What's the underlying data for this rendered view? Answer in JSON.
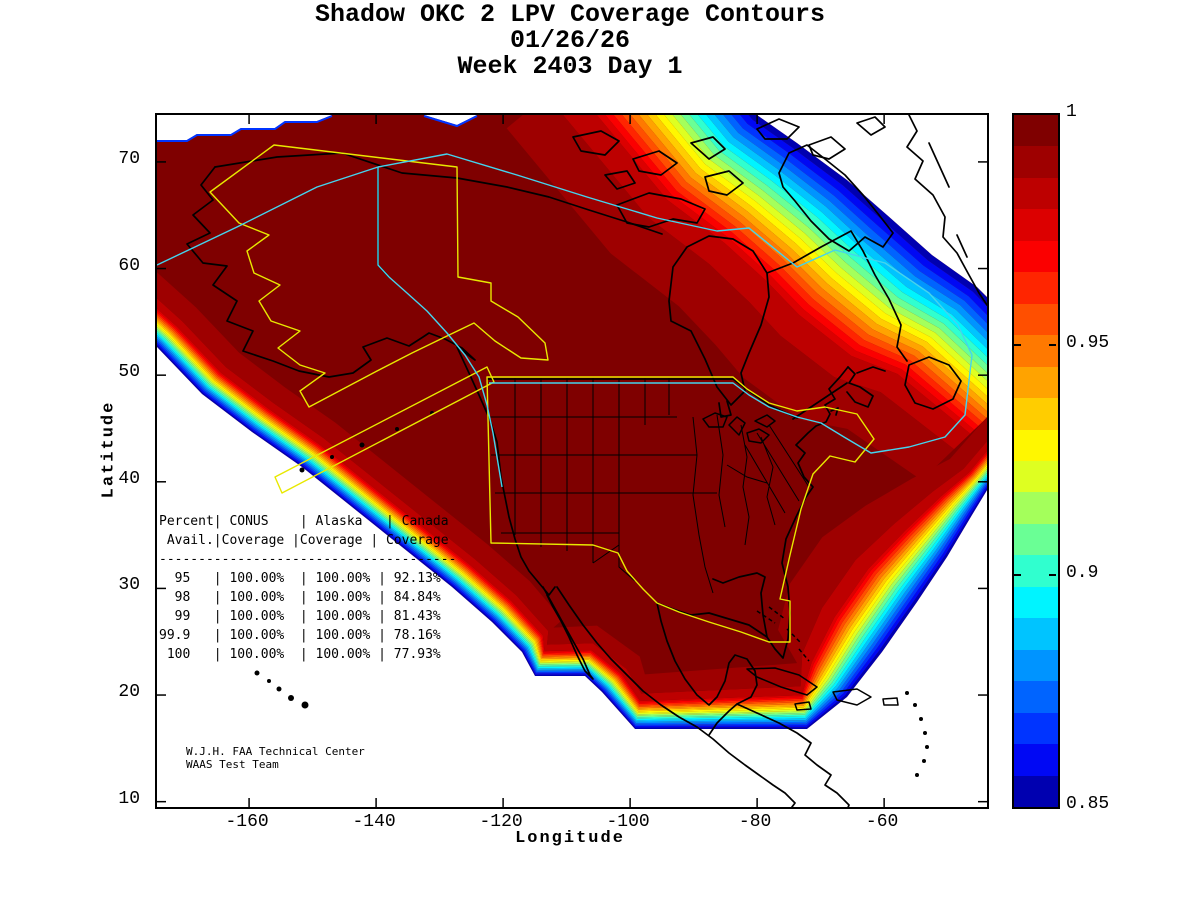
{
  "title": {
    "line1": "Shadow OKC 2 LPV Coverage Contours",
    "line2": "01/26/26",
    "line3": "Week 2403 Day 1"
  },
  "axes": {
    "xlabel": "Longitude",
    "ylabel": "Latitude",
    "x_ticks": [
      -160,
      -140,
      -120,
      -100,
      -80,
      -60
    ],
    "y_ticks": [
      10,
      20,
      30,
      40,
      50,
      60,
      70
    ],
    "xlim": [
      -174.5,
      -43.8
    ],
    "ylim": [
      9.5,
      74.4
    ]
  },
  "colorbar": {
    "tick_labels": [
      "1",
      "0.95",
      "0.9",
      "0.85"
    ],
    "tick_values": [
      1,
      0.95,
      0.9,
      0.85
    ],
    "min": 0.85,
    "max": 1
  },
  "coverage_table": {
    "lines": [
      "Percent| CONUS    | Alaska   | Canada",
      " Avail.|Coverage |Coverage | Coverage",
      "--------------------------------------",
      "  95   | 100.00%  | 100.00% | 92.13%",
      "  98   | 100.00%  | 100.00% | 84.84%",
      "  99   | 100.00%  | 100.00% | 81.43%",
      "99.9   | 100.00%  | 100.00% | 78.16%",
      " 100   | 100.00%  | 100.00% | 77.93%"
    ]
  },
  "credit": {
    "line1": "W.J.H. FAA Technical Center",
    "line2": "WAAS Test Team"
  },
  "colors": {
    "jet": [
      "#7f0000",
      "#9e0000",
      "#bd0000",
      "#dc0000",
      "#fb0000",
      "#ff2500",
      "#ff4f00",
      "#ff7900",
      "#ffa300",
      "#ffcd00",
      "#fff700",
      "#deff21",
      "#a4ff5b",
      "#6aff95",
      "#30ffcf",
      "#00f4ff",
      "#00c4ff",
      "#0094ff",
      "#0064ff",
      "#0034ff",
      "#0008f4",
      "#0000b0"
    ],
    "core": "#7f0000",
    "service_boundary_yellow": "#e8e800",
    "region_line_cyan": "#44d4ee",
    "coastline": "#000000"
  },
  "chart_data": {
    "type": "heatmap",
    "subtype": "filled_contour_coverage_map",
    "title": "Shadow OKC 2 LPV Coverage Contours",
    "date": "01/26/26",
    "gps_week_day": "Week 2403 Day 1",
    "xlabel": "Longitude",
    "ylabel": "Latitude",
    "xlim": [
      -174.5,
      -43.8
    ],
    "ylim": [
      9.5,
      74.4
    ],
    "x_ticks": [
      -160,
      -140,
      -120,
      -100,
      -80,
      -60
    ],
    "y_ticks": [
      10,
      20,
      30,
      40,
      50,
      60,
      70
    ],
    "colormap": "jet",
    "colorbar_range": [
      0.85,
      1
    ],
    "colorbar_ticks": [
      1,
      0.95,
      0.9,
      0.85
    ],
    "value_meaning": "LPV availability fraction; dark red core = 1.0 covering CONUS, Alaska and most of Canada; bands fall to 0.85 (dark blue) at coverage edge over NE Canada/Greenland, Atlantic, Pacific SW and Caribbean",
    "coverage_table": {
      "columns": [
        "Percent Avail.",
        "CONUS Coverage",
        "Alaska Coverage",
        "Canada Coverage"
      ],
      "rows": [
        [
          "95",
          "100.00%",
          "100.00%",
          "92.13%"
        ],
        [
          "98",
          "100.00%",
          "100.00%",
          "84.84%"
        ],
        [
          "99",
          "100.00%",
          "100.00%",
          "81.43%"
        ],
        [
          "99.9",
          "100.00%",
          "100.00%",
          "78.16%"
        ],
        [
          "100",
          "100.00%",
          "100.00%",
          "77.93%"
        ]
      ]
    },
    "annotations": [
      "W.J.H. FAA Technical Center",
      "WAAS Test Team"
    ],
    "legend_position": "right colorbar",
    "grid": false
  }
}
